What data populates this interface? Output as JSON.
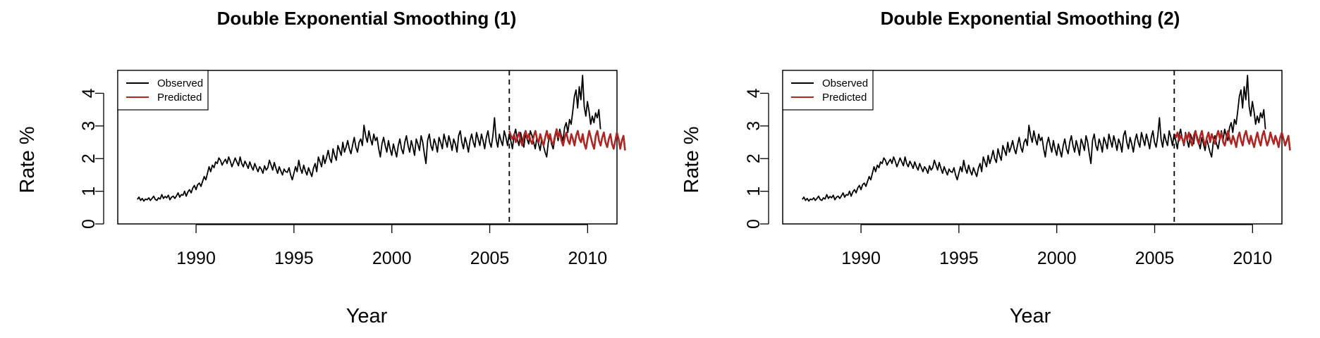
{
  "colors": {
    "observed": "#000000",
    "predicted": "#b2241f"
  },
  "chart_data": [
    {
      "type": "line",
      "title": "Double Exponential Smoothing (1)",
      "xlabel": "Year",
      "ylabel": "Rate %",
      "xlim": [
        1986,
        2011.5
      ],
      "ylim": [
        0,
        4.7
      ],
      "x_ticks": [
        1990,
        1995,
        2000,
        2005,
        2010
      ],
      "y_ticks": [
        0,
        1,
        2,
        3,
        4
      ],
      "grid": false,
      "legend": {
        "position": "top-left",
        "entries": [
          "Observed",
          "Predicted"
        ]
      },
      "annotations": [
        {
          "type": "vertical-dashed-line",
          "x": 2006
        }
      ],
      "series": [
        {
          "name": "Observed",
          "x_start": 1987.0,
          "x_step": 0.0833,
          "values": [
            0.75,
            0.82,
            0.72,
            0.78,
            0.7,
            0.76,
            0.74,
            0.8,
            0.72,
            0.78,
            0.85,
            0.75,
            0.72,
            0.8,
            0.76,
            0.9,
            0.78,
            0.84,
            0.8,
            0.88,
            0.74,
            0.82,
            0.85,
            0.78,
            0.86,
            0.95,
            0.82,
            0.9,
            0.88,
            1.0,
            0.85,
            0.98,
            1.05,
            0.95,
            1.1,
            1.18,
            1.05,
            1.2,
            1.25,
            1.15,
            1.3,
            1.45,
            1.35,
            1.55,
            1.75,
            1.6,
            1.8,
            1.72,
            1.9,
            1.85,
            2.02,
            1.95,
            1.8,
            1.9,
            1.98,
            1.85,
            2.05,
            1.92,
            1.75,
            1.88,
            2.02,
            1.9,
            1.78,
            2.05,
            1.85,
            1.75,
            1.92,
            1.82,
            1.7,
            1.9,
            1.75,
            1.65,
            1.85,
            1.72,
            1.6,
            1.75,
            1.68,
            1.55,
            1.78,
            1.65,
            1.72,
            1.95,
            1.8,
            1.65,
            1.88,
            1.7,
            1.55,
            1.75,
            1.62,
            1.5,
            1.68,
            1.6,
            1.58,
            1.72,
            1.5,
            1.35,
            1.55,
            1.75,
            1.6,
            1.95,
            1.7,
            1.55,
            1.8,
            1.62,
            1.5,
            1.72,
            1.58,
            1.45,
            1.7,
            1.85,
            1.6,
            2.05,
            1.9,
            1.75,
            2.1,
            1.85,
            2.02,
            2.25,
            2.0,
            1.88,
            2.3,
            2.1,
            1.95,
            2.4,
            2.25,
            2.1,
            2.5,
            2.2,
            2.35,
            2.55,
            2.3,
            2.15,
            2.42,
            2.65,
            2.35,
            2.2,
            2.5,
            2.6,
            2.4,
            3.02,
            2.7,
            2.5,
            2.85,
            2.6,
            2.42,
            2.75,
            2.55,
            2.65,
            2.3,
            2.05,
            2.45,
            2.65,
            2.4,
            2.2,
            2.55,
            2.3,
            2.1,
            2.45,
            2.25,
            2.05,
            2.4,
            2.6,
            2.3,
            2.15,
            2.5,
            2.7,
            2.4,
            2.2,
            2.55,
            2.35,
            2.1,
            2.6,
            2.45,
            2.25,
            2.7,
            2.5,
            2.15,
            1.85,
            2.55,
            2.75,
            2.4,
            2.25,
            2.6,
            2.45,
            2.2,
            2.65,
            2.5,
            2.3,
            2.75,
            2.55,
            2.35,
            2.7,
            2.5,
            2.25,
            2.6,
            2.45,
            2.2,
            2.7,
            2.85,
            2.5,
            2.3,
            2.65,
            2.45,
            2.2,
            2.55,
            2.75,
            2.5,
            2.35,
            2.8,
            2.6,
            2.4,
            2.75,
            2.55,
            2.3,
            2.65,
            2.85,
            2.5,
            2.35,
            2.7,
            3.25,
            2.6,
            2.35,
            2.75,
            2.55,
            2.4,
            2.85,
            2.65,
            2.4,
            2.75,
            2.55,
            2.3,
            2.7,
            2.9,
            2.6,
            2.4,
            2.8,
            2.55,
            2.35,
            2.75,
            2.6,
            2.45,
            2.85,
            2.7,
            2.5,
            2.3,
            2.65,
            2.45,
            2.25,
            2.6,
            2.4,
            2.2,
            2.05,
            2.5,
            2.7,
            2.45,
            2.3,
            2.6,
            2.85,
            2.55,
            2.9,
            2.7,
            2.55,
            2.95,
            3.1,
            2.8,
            3.2,
            3.05,
            3.45,
            3.9,
            4.1,
            3.55,
            4.2,
            3.8,
            4.55,
            3.6,
            3.3,
            3.75,
            3.45,
            3.05,
            3.3,
            3.1,
            3.4,
            3.25,
            3.5,
            2.9
          ]
        },
        {
          "name": "Predicted",
          "x_start": 2006.0,
          "x_step": 0.0833,
          "values": [
            2.85,
            2.7,
            2.6,
            2.75,
            2.5,
            2.65,
            2.8,
            2.55,
            2.4,
            2.7,
            2.85,
            2.6,
            2.75,
            2.55,
            2.45,
            2.7,
            2.85,
            2.6,
            2.5,
            2.75,
            2.55,
            2.4,
            2.65,
            2.85,
            2.6,
            2.75,
            2.5,
            2.45,
            2.7,
            2.9,
            2.65,
            2.8,
            2.55,
            2.4,
            2.65,
            2.8,
            2.55,
            2.45,
            2.75,
            2.6,
            2.4,
            2.7,
            2.85,
            2.6,
            2.5,
            2.75,
            2.45,
            2.3,
            2.6,
            2.85,
            2.65,
            2.45,
            2.3,
            2.7,
            2.85,
            2.55,
            2.4,
            2.65,
            2.8,
            2.5,
            2.35,
            2.6,
            2.75,
            2.45,
            2.3,
            2.55,
            2.8,
            2.6,
            2.3,
            2.55,
            2.7,
            2.25
          ]
        }
      ]
    },
    {
      "type": "line",
      "title": "Double Exponential Smoothing (2)",
      "xlabel": "Year",
      "ylabel": "Rate %",
      "xlim": [
        1986,
        2011.5
      ],
      "ylim": [
        0,
        4.7
      ],
      "x_ticks": [
        1990,
        1995,
        2000,
        2005,
        2010
      ],
      "y_ticks": [
        0,
        1,
        2,
        3,
        4
      ],
      "grid": false,
      "legend": {
        "position": "top-left",
        "entries": [
          "Observed",
          "Predicted"
        ]
      },
      "annotations": [
        {
          "type": "vertical-dashed-line",
          "x": 2006
        }
      ],
      "series": [
        {
          "name": "Observed",
          "x_start": 1987.0,
          "x_step": 0.0833,
          "values": [
            0.75,
            0.82,
            0.72,
            0.78,
            0.7,
            0.76,
            0.74,
            0.8,
            0.72,
            0.78,
            0.85,
            0.75,
            0.72,
            0.8,
            0.76,
            0.9,
            0.78,
            0.84,
            0.8,
            0.88,
            0.74,
            0.82,
            0.85,
            0.78,
            0.86,
            0.95,
            0.82,
            0.9,
            0.88,
            1.0,
            0.85,
            0.98,
            1.05,
            0.95,
            1.1,
            1.18,
            1.05,
            1.2,
            1.25,
            1.15,
            1.3,
            1.45,
            1.35,
            1.55,
            1.75,
            1.6,
            1.8,
            1.72,
            1.9,
            1.85,
            2.02,
            1.95,
            1.8,
            1.9,
            1.98,
            1.85,
            2.05,
            1.92,
            1.75,
            1.88,
            2.02,
            1.9,
            1.78,
            2.05,
            1.85,
            1.75,
            1.92,
            1.82,
            1.7,
            1.9,
            1.75,
            1.65,
            1.85,
            1.72,
            1.6,
            1.75,
            1.68,
            1.55,
            1.78,
            1.65,
            1.72,
            1.95,
            1.8,
            1.65,
            1.88,
            1.7,
            1.55,
            1.75,
            1.62,
            1.5,
            1.68,
            1.6,
            1.58,
            1.72,
            1.5,
            1.35,
            1.55,
            1.75,
            1.6,
            1.95,
            1.7,
            1.55,
            1.8,
            1.62,
            1.5,
            1.72,
            1.58,
            1.45,
            1.7,
            1.85,
            1.6,
            2.05,
            1.9,
            1.75,
            2.1,
            1.85,
            2.02,
            2.25,
            2.0,
            1.88,
            2.3,
            2.1,
            1.95,
            2.4,
            2.25,
            2.1,
            2.5,
            2.2,
            2.35,
            2.55,
            2.3,
            2.15,
            2.42,
            2.65,
            2.35,
            2.2,
            2.5,
            2.6,
            2.4,
            3.02,
            2.7,
            2.5,
            2.85,
            2.6,
            2.42,
            2.75,
            2.55,
            2.65,
            2.3,
            2.05,
            2.45,
            2.65,
            2.4,
            2.2,
            2.55,
            2.3,
            2.1,
            2.45,
            2.25,
            2.05,
            2.4,
            2.6,
            2.3,
            2.15,
            2.5,
            2.7,
            2.4,
            2.2,
            2.55,
            2.35,
            2.1,
            2.6,
            2.45,
            2.25,
            2.7,
            2.5,
            2.15,
            1.85,
            2.55,
            2.75,
            2.4,
            2.25,
            2.6,
            2.45,
            2.2,
            2.65,
            2.5,
            2.3,
            2.75,
            2.55,
            2.35,
            2.7,
            2.5,
            2.25,
            2.6,
            2.45,
            2.2,
            2.7,
            2.85,
            2.5,
            2.3,
            2.65,
            2.45,
            2.2,
            2.55,
            2.75,
            2.5,
            2.35,
            2.8,
            2.6,
            2.4,
            2.75,
            2.55,
            2.3,
            2.65,
            2.85,
            2.5,
            2.35,
            2.7,
            3.25,
            2.6,
            2.35,
            2.75,
            2.55,
            2.4,
            2.85,
            2.65,
            2.4,
            2.75,
            2.55,
            2.3,
            2.7,
            2.9,
            2.6,
            2.4,
            2.8,
            2.55,
            2.35,
            2.75,
            2.6,
            2.45,
            2.85,
            2.7,
            2.5,
            2.3,
            2.65,
            2.45,
            2.25,
            2.6,
            2.4,
            2.2,
            2.05,
            2.5,
            2.7,
            2.45,
            2.3,
            2.6,
            2.85,
            2.55,
            2.9,
            2.7,
            2.55,
            2.95,
            3.1,
            2.8,
            3.2,
            3.05,
            3.45,
            3.9,
            4.1,
            3.55,
            4.2,
            3.8,
            4.55,
            3.6,
            3.3,
            3.75,
            3.45,
            3.05,
            3.3,
            3.1,
            3.4,
            3.25,
            3.5,
            2.9
          ]
        },
        {
          "name": "Predicted",
          "x_start": 2006.0,
          "x_step": 0.0833,
          "values": [
            2.75,
            2.65,
            2.8,
            2.55,
            2.7,
            2.6,
            2.45,
            2.75,
            2.6,
            2.8,
            2.55,
            2.4,
            2.7,
            2.85,
            2.6,
            2.45,
            2.7,
            2.85,
            2.55,
            2.4,
            2.65,
            2.8,
            2.5,
            2.75,
            2.6,
            2.45,
            2.7,
            2.85,
            2.6,
            2.8,
            2.5,
            2.4,
            2.65,
            2.85,
            2.6,
            2.45,
            2.7,
            2.55,
            2.35,
            2.65,
            2.8,
            2.55,
            2.4,
            2.7,
            2.85,
            2.6,
            2.45,
            2.7,
            2.5,
            2.35,
            2.6,
            2.8,
            2.55,
            2.4,
            2.7,
            2.85,
            2.6,
            2.4,
            2.55,
            2.8,
            2.6,
            2.45,
            2.7,
            2.55,
            2.35,
            2.65,
            2.8,
            2.6,
            2.4,
            2.55,
            2.7,
            2.25
          ]
        }
      ]
    }
  ]
}
